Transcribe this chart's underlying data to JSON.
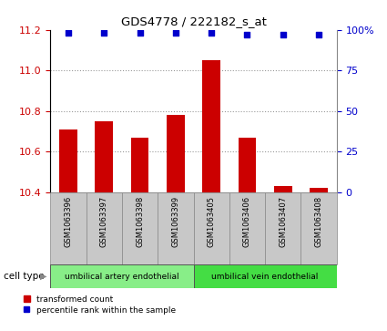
{
  "title": "GDS4778 / 222182_s_at",
  "samples": [
    "GSM1063396",
    "GSM1063397",
    "GSM1063398",
    "GSM1063399",
    "GSM1063405",
    "GSM1063406",
    "GSM1063407",
    "GSM1063408"
  ],
  "bar_values": [
    10.71,
    10.75,
    10.67,
    10.78,
    11.05,
    10.67,
    10.43,
    10.42
  ],
  "percentile_values": [
    98,
    98,
    98,
    98,
    98,
    97,
    97,
    97
  ],
  "ylim": [
    10.4,
    11.2
  ],
  "yticks": [
    10.4,
    10.6,
    10.8,
    11.0,
    11.2
  ],
  "grid_yticks": [
    10.6,
    10.8,
    11.0
  ],
  "right_yticks": [
    0,
    25,
    50,
    75,
    100
  ],
  "right_ylim": [
    0,
    100
  ],
  "bar_color": "#cc0000",
  "percentile_color": "#0000cc",
  "bar_width": 0.5,
  "cell_type_groups": [
    {
      "label": "umbilical artery endothelial",
      "start": 0,
      "end": 4,
      "color": "#88ee88"
    },
    {
      "label": "umbilical vein endothelial",
      "start": 4,
      "end": 8,
      "color": "#44dd44"
    }
  ],
  "cell_type_label": "cell type",
  "legend_bar_label": "transformed count",
  "legend_dot_label": "percentile rank within the sample",
  "tick_label_color_left": "#cc0000",
  "tick_label_color_right": "#0000cc",
  "sample_box_color": "#c8c8c8",
  "sample_box_edge_color": "#888888"
}
